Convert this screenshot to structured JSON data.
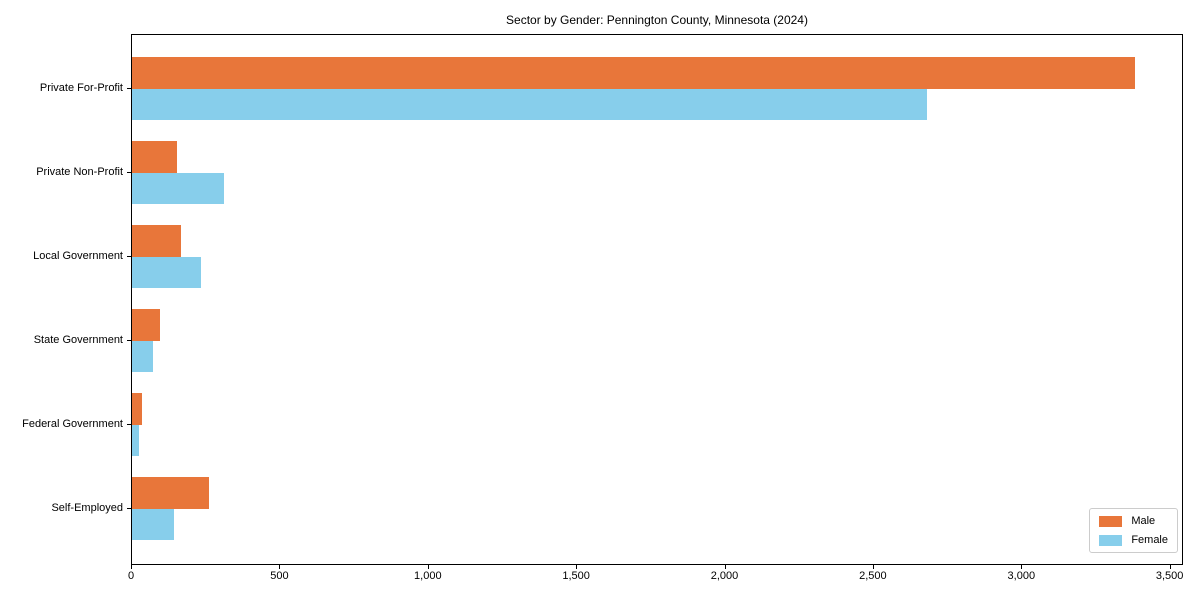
{
  "chart_data": {
    "type": "bar",
    "orientation": "horizontal",
    "title": "Sector by Gender: Pennington County, Minnesota (2024)",
    "xlabel": "",
    "ylabel": "",
    "categories": [
      "Private For-Profit",
      "Private Non-Profit",
      "Local Government",
      "State Government",
      "Federal Government",
      "Self-Employed"
    ],
    "series": [
      {
        "name": "Male",
        "color": "#e8763a",
        "values": [
          3380,
          150,
          164,
          94,
          33,
          258
        ]
      },
      {
        "name": "Female",
        "color": "#87ceeb",
        "values": [
          2680,
          309,
          232,
          70,
          22,
          140
        ]
      }
    ],
    "xlim": [
      0,
      3545
    ],
    "xticks": [
      0,
      500,
      1000,
      1500,
      2000,
      2500,
      3000,
      3500
    ],
    "xtick_labels": [
      "0",
      "500",
      "1,000",
      "1,500",
      "2,000",
      "2,500",
      "3,000",
      "3,500"
    ],
    "grid": false,
    "legend": {
      "position": "lower right",
      "entries": [
        "Male",
        "Female"
      ]
    }
  }
}
